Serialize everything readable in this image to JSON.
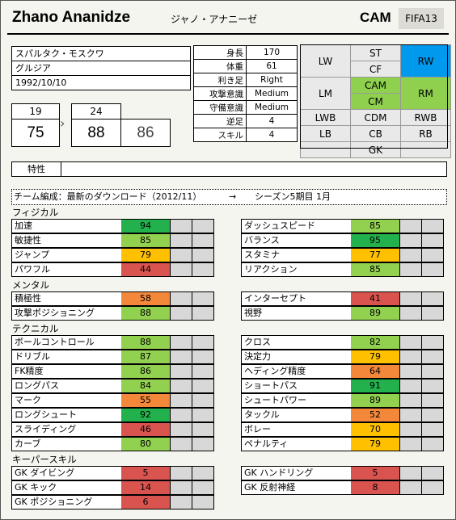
{
  "header": {
    "name": "Zhano Ananidze",
    "name_kana": "ジャノ・アナニーゼ",
    "position": "CAM",
    "game": "FIFA13"
  },
  "info": {
    "club": "スパルタク・モスクワ",
    "nation": "グルジア",
    "birthdate": "1992/10/10"
  },
  "attributes": [
    {
      "key": "身長",
      "value": "170"
    },
    {
      "key": "体重",
      "value": "61"
    },
    {
      "key": "利き足",
      "value": "Right"
    },
    {
      "key": "攻撃意識",
      "value": "Medium"
    },
    {
      "key": "守備意識",
      "value": "Medium"
    },
    {
      "key": "逆足",
      "value": "4"
    },
    {
      "key": "スキル",
      "value": "4"
    }
  ],
  "positions": {
    "rows": [
      [
        "LW",
        "ST",
        "RW"
      ],
      [
        "",
        "CF",
        ""
      ],
      [
        "LM",
        "CAM",
        "RM"
      ],
      [
        "",
        "CM",
        ""
      ],
      [
        "LWB",
        "CDM",
        "RWB"
      ],
      [
        "LB",
        "CB",
        "RB"
      ],
      [
        "",
        "GK",
        ""
      ]
    ],
    "highlight_primary": "#0099ee",
    "highlight_secondary": "#8fd14f"
  },
  "overall": {
    "age1": "19",
    "ovr1": "75",
    "arrow": "›",
    "age2": "24",
    "ovr2": "88",
    "potential": "86"
  },
  "traits": {
    "label": "特性",
    "value": ""
  },
  "download": {
    "text": "チーム編成：最新のダウンロード（2012/11）",
    "arrow": "→",
    "season": "シーズン5期目 1月"
  },
  "sections": {
    "physical": "フィジカル",
    "mental": "メンタル",
    "technical": "テクニカル",
    "keeper": "キーパースキル"
  },
  "colors": {
    "green": "#22b14c",
    "lightgreen": "#92d050",
    "yellow": "#ffc000",
    "orange": "#f4883a",
    "red": "#d9534f"
  },
  "stats": {
    "physical_left": [
      {
        "name": "加速",
        "value": 94
      },
      {
        "name": "敏捷性",
        "value": 85
      },
      {
        "name": "ジャンプ",
        "value": 79
      },
      {
        "name": "パワフル",
        "value": 44
      }
    ],
    "physical_right": [
      {
        "name": "ダッシュスピード",
        "value": 85
      },
      {
        "name": "バランス",
        "value": 95
      },
      {
        "name": "スタミナ",
        "value": 77
      },
      {
        "name": "リアクション",
        "value": 85
      }
    ],
    "mental_left": [
      {
        "name": "積極性",
        "value": 58
      },
      {
        "name": "攻撃ポジショニング",
        "value": 88
      }
    ],
    "mental_right": [
      {
        "name": "インターセプト",
        "value": 41
      },
      {
        "name": "視野",
        "value": 89
      }
    ],
    "technical_left": [
      {
        "name": "ボールコントロール",
        "value": 88
      },
      {
        "name": "ドリブル",
        "value": 87
      },
      {
        "name": "FK精度",
        "value": 86
      },
      {
        "name": "ロングパス",
        "value": 84
      },
      {
        "name": "マーク",
        "value": 55
      },
      {
        "name": "ロングシュート",
        "value": 92
      },
      {
        "name": "スライディング",
        "value": 46
      },
      {
        "name": "カーブ",
        "value": 80
      }
    ],
    "technical_right": [
      {
        "name": "クロス",
        "value": 82
      },
      {
        "name": "決定力",
        "value": 79
      },
      {
        "name": "ヘディング精度",
        "value": 64
      },
      {
        "name": "ショートパス",
        "value": 91
      },
      {
        "name": "シュートパワー",
        "value": 89
      },
      {
        "name": "タックル",
        "value": 52
      },
      {
        "name": "ボレー",
        "value": 70
      },
      {
        "name": "ペナルティ",
        "value": 79
      }
    ],
    "keeper_left": [
      {
        "name": "GK ダイビング",
        "value": 5
      },
      {
        "name": "GK キック",
        "value": 14
      },
      {
        "name": "GK ポジショニング",
        "value": 6
      }
    ],
    "keeper_right": [
      {
        "name": "GK ハンドリング",
        "value": 5
      },
      {
        "name": "GK 反射神経",
        "value": 8
      }
    ]
  }
}
